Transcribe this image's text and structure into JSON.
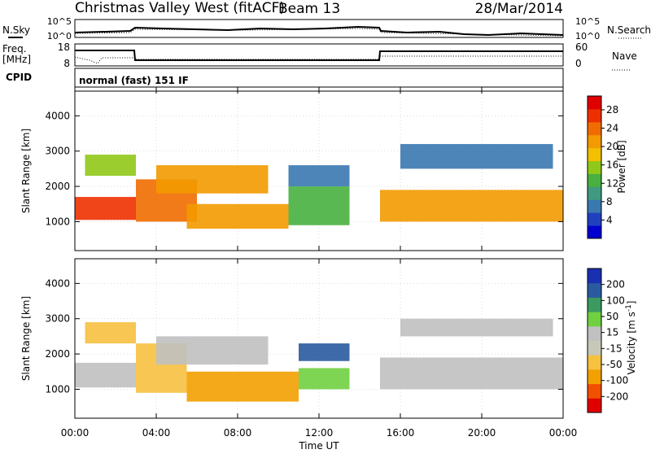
{
  "header": {
    "station": "Christmas Valley West (fitACF)",
    "beam": "Beam 13",
    "date": "28/Mar/2014"
  },
  "top_panels": {
    "nsky_label": "N.Sky",
    "nsearch_label": "N.Search",
    "noise_ticks": [
      "10^5",
      "10^0"
    ],
    "noise_ticks_right": [
      "10^5",
      "10^0"
    ],
    "freq_label": "Freq.",
    "freq_unit": "[MHz]",
    "freq_ticks": [
      "18",
      "8"
    ],
    "nave_label": "Nave",
    "nave_ticks": [
      "60",
      "0"
    ],
    "cpid_label": "CPID",
    "cpid_text": "normal (fast) 151 IF"
  },
  "colors": {
    "power_scale": [
      "#0000d0",
      "#2040c0",
      "#3a78b0",
      "#3f9a80",
      "#48b040",
      "#90c818",
      "#f2c000",
      "#f29a00",
      "#f06c00",
      "#ee3000",
      "#e00000"
    ],
    "velocity_scale": [
      "#e00000",
      "#f05000",
      "#f2a000",
      "#f6c040",
      "#c8c8b8",
      "#c0c0c0",
      "#70d040",
      "#3a9a60",
      "#2a5aa0",
      "#1a30b0"
    ],
    "grid": "#bbbbbb"
  },
  "chart_data": [
    {
      "type": "heatmap",
      "name": "power",
      "xlabel": "",
      "ylabel": "Slant Range [km]",
      "x_ticks": [
        "00:00",
        "04:00",
        "08:00",
        "12:00",
        "16:00",
        "20:00",
        "00:00"
      ],
      "y_ticks": [
        1000,
        2000,
        3000,
        4000
      ],
      "ylim": [
        180,
        4700
      ],
      "colorbar_label": "Power [dB]",
      "colorbar_ticks": [
        4,
        8,
        12,
        16,
        20,
        24,
        28
      ],
      "colorbar_range": [
        0,
        31
      ],
      "bands": [
        {
          "start": 0.0,
          "end": 3.0,
          "r1": 1050,
          "r2": 1700,
          "value": 26
        },
        {
          "start": 0.5,
          "end": 3.0,
          "r1": 2300,
          "r2": 2900,
          "value": 16
        },
        {
          "start": 3.0,
          "end": 6.0,
          "r1": 1000,
          "r2": 2200,
          "value": 24
        },
        {
          "start": 4.0,
          "end": 9.5,
          "r1": 1800,
          "r2": 2600,
          "value": 20
        },
        {
          "start": 5.5,
          "end": 10.5,
          "r1": 800,
          "r2": 1500,
          "value": 22
        },
        {
          "start": 10.5,
          "end": 13.5,
          "r1": 900,
          "r2": 2000,
          "value": 14
        },
        {
          "start": 10.5,
          "end": 13.5,
          "r1": 2000,
          "r2": 2600,
          "value": 6
        },
        {
          "start": 15.0,
          "end": 24.0,
          "r1": 1000,
          "r2": 1900,
          "value": 22
        },
        {
          "start": 16.0,
          "end": 23.5,
          "r1": 2500,
          "r2": 3200,
          "value": 6
        }
      ]
    },
    {
      "type": "heatmap",
      "name": "velocity",
      "xlabel": "Time UT",
      "ylabel": "Slant Range [km]",
      "x_ticks": [
        "00:00",
        "04:00",
        "08:00",
        "12:00",
        "16:00",
        "20:00",
        "00:00"
      ],
      "y_ticks": [
        1000,
        2000,
        3000,
        4000
      ],
      "ylim": [
        180,
        4700
      ],
      "colorbar_label": "Velocity [m s-1]",
      "colorbar_ticks": [
        -200,
        -100,
        -50,
        -15,
        15,
        50,
        100,
        200
      ],
      "bands": [
        {
          "start": 0.0,
          "end": 3.0,
          "r1": 1050,
          "r2": 1750,
          "value": 0
        },
        {
          "start": 0.5,
          "end": 3.0,
          "r1": 2300,
          "r2": 2900,
          "value": -40
        },
        {
          "start": 3.0,
          "end": 5.5,
          "r1": 900,
          "r2": 2300,
          "value": -30
        },
        {
          "start": 4.0,
          "end": 9.5,
          "r1": 1700,
          "r2": 2500,
          "value": 0
        },
        {
          "start": 5.5,
          "end": 11.0,
          "r1": 650,
          "r2": 1500,
          "value": -60
        },
        {
          "start": 11.0,
          "end": 13.5,
          "r1": 1000,
          "r2": 1600,
          "value": 40
        },
        {
          "start": 11.0,
          "end": 13.5,
          "r1": 1800,
          "r2": 2300,
          "value": 150
        },
        {
          "start": 15.0,
          "end": 24.0,
          "r1": 1000,
          "r2": 1900,
          "value": 0
        },
        {
          "start": 16.0,
          "end": 23.5,
          "r1": 2500,
          "r2": 3000,
          "value": 0
        }
      ]
    }
  ]
}
